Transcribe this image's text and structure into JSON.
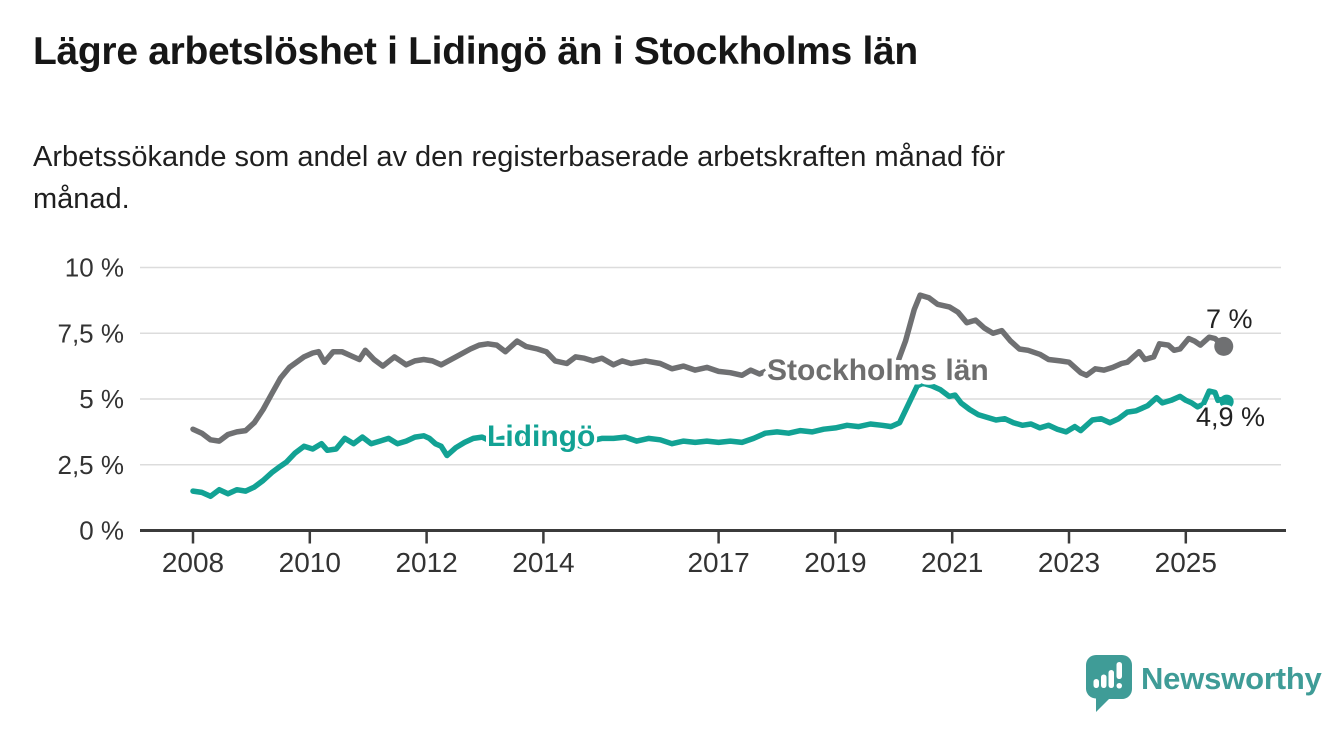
{
  "header": {
    "title": "Lägre arbetslöshet i Lidingö än i Stockholms län",
    "subtitle_line1": "Arbetssökande som andel av den registerbaserade arbetskraften månad för",
    "subtitle_line2": "månad."
  },
  "chart_data": {
    "type": "line",
    "title": "Lägre arbetslöshet i Lidingö än i Stockholms län",
    "xlabel": "",
    "ylabel": "Arbetssökande som andel av den registerbaserade arbetskraften",
    "unit": "%",
    "grid": true,
    "legend_position": "inline-labels",
    "ylim": [
      0,
      10
    ],
    "xlim": [
      2007.6,
      2026.3
    ],
    "y_ticks": [
      {
        "value": 0,
        "label": "0 %"
      },
      {
        "value": 2.5,
        "label": "2,5 %"
      },
      {
        "value": 5,
        "label": "5 %"
      },
      {
        "value": 7.5,
        "label": "7,5 %"
      },
      {
        "value": 10,
        "label": "10 %"
      }
    ],
    "x_ticks": [
      2008,
      2010,
      2012,
      2014,
      2017,
      2019,
      2021,
      2023,
      2025
    ],
    "series": [
      {
        "name": "Stockholms län",
        "color": "#6f7072",
        "end_label": "7 %",
        "end_value": 7.0,
        "points": [
          [
            2008.0,
            3.85
          ],
          [
            2008.15,
            3.7
          ],
          [
            2008.3,
            3.45
          ],
          [
            2008.45,
            3.4
          ],
          [
            2008.6,
            3.65
          ],
          [
            2008.75,
            3.75
          ],
          [
            2008.9,
            3.8
          ],
          [
            2009.05,
            4.1
          ],
          [
            2009.2,
            4.6
          ],
          [
            2009.35,
            5.2
          ],
          [
            2009.5,
            5.8
          ],
          [
            2009.65,
            6.2
          ],
          [
            2009.9,
            6.6
          ],
          [
            2010.05,
            6.75
          ],
          [
            2010.15,
            6.8
          ],
          [
            2010.25,
            6.4
          ],
          [
            2010.4,
            6.8
          ],
          [
            2010.55,
            6.8
          ],
          [
            2010.7,
            6.65
          ],
          [
            2010.85,
            6.5
          ],
          [
            2010.95,
            6.85
          ],
          [
            2011.1,
            6.5
          ],
          [
            2011.25,
            6.25
          ],
          [
            2011.45,
            6.6
          ],
          [
            2011.65,
            6.3
          ],
          [
            2011.8,
            6.45
          ],
          [
            2011.95,
            6.5
          ],
          [
            2012.1,
            6.45
          ],
          [
            2012.25,
            6.3
          ],
          [
            2012.5,
            6.6
          ],
          [
            2012.75,
            6.9
          ],
          [
            2012.9,
            7.05
          ],
          [
            2013.05,
            7.1
          ],
          [
            2013.2,
            7.05
          ],
          [
            2013.35,
            6.8
          ],
          [
            2013.55,
            7.2
          ],
          [
            2013.7,
            7.0
          ],
          [
            2013.9,
            6.9
          ],
          [
            2014.05,
            6.8
          ],
          [
            2014.2,
            6.45
          ],
          [
            2014.4,
            6.35
          ],
          [
            2014.55,
            6.6
          ],
          [
            2014.7,
            6.55
          ],
          [
            2014.85,
            6.45
          ],
          [
            2015.0,
            6.55
          ],
          [
            2015.2,
            6.3
          ],
          [
            2015.35,
            6.45
          ],
          [
            2015.5,
            6.35
          ],
          [
            2015.75,
            6.45
          ],
          [
            2016.0,
            6.35
          ],
          [
            2016.2,
            6.15
          ],
          [
            2016.4,
            6.25
          ],
          [
            2016.6,
            6.1
          ],
          [
            2016.8,
            6.2
          ],
          [
            2017.0,
            6.05
          ],
          [
            2017.2,
            6.0
          ],
          [
            2017.4,
            5.9
          ],
          [
            2017.55,
            6.1
          ],
          [
            2017.7,
            5.95
          ],
          [
            2017.85,
            6.1
          ],
          [
            2018.1,
            6.0
          ],
          [
            2018.4,
            6.05
          ],
          [
            2018.7,
            6.0
          ],
          [
            2019.0,
            6.1
          ],
          [
            2019.3,
            6.05
          ],
          [
            2019.6,
            6.1
          ],
          [
            2019.9,
            6.15
          ],
          [
            2020.05,
            6.3
          ],
          [
            2020.2,
            7.2
          ],
          [
            2020.35,
            8.4
          ],
          [
            2020.45,
            8.95
          ],
          [
            2020.6,
            8.85
          ],
          [
            2020.75,
            8.6
          ],
          [
            2020.95,
            8.5
          ],
          [
            2021.1,
            8.3
          ],
          [
            2021.25,
            7.9
          ],
          [
            2021.4,
            8.0
          ],
          [
            2021.55,
            7.7
          ],
          [
            2021.7,
            7.5
          ],
          [
            2021.85,
            7.6
          ],
          [
            2022.0,
            7.2
          ],
          [
            2022.15,
            6.9
          ],
          [
            2022.3,
            6.85
          ],
          [
            2022.5,
            6.7
          ],
          [
            2022.65,
            6.5
          ],
          [
            2022.85,
            6.45
          ],
          [
            2023.0,
            6.4
          ],
          [
            2023.2,
            6.0
          ],
          [
            2023.3,
            5.9
          ],
          [
            2023.45,
            6.15
          ],
          [
            2023.6,
            6.1
          ],
          [
            2023.75,
            6.2
          ],
          [
            2023.9,
            6.35
          ],
          [
            2024.0,
            6.4
          ],
          [
            2024.2,
            6.8
          ],
          [
            2024.3,
            6.5
          ],
          [
            2024.45,
            6.6
          ],
          [
            2024.55,
            7.1
          ],
          [
            2024.7,
            7.05
          ],
          [
            2024.8,
            6.85
          ],
          [
            2024.9,
            6.9
          ],
          [
            2025.05,
            7.3
          ],
          [
            2025.15,
            7.2
          ],
          [
            2025.25,
            7.05
          ],
          [
            2025.4,
            7.35
          ],
          [
            2025.5,
            7.3
          ],
          [
            2025.65,
            7.0
          ]
        ]
      },
      {
        "name": "Lidingö",
        "color": "#12a294",
        "end_label": "4,9 %",
        "end_value": 4.9,
        "points": [
          [
            2008.0,
            1.5
          ],
          [
            2008.15,
            1.45
          ],
          [
            2008.3,
            1.3
          ],
          [
            2008.45,
            1.55
          ],
          [
            2008.6,
            1.4
          ],
          [
            2008.75,
            1.55
          ],
          [
            2008.9,
            1.5
          ],
          [
            2009.05,
            1.65
          ],
          [
            2009.2,
            1.9
          ],
          [
            2009.35,
            2.2
          ],
          [
            2009.5,
            2.45
          ],
          [
            2009.6,
            2.6
          ],
          [
            2009.75,
            2.95
          ],
          [
            2009.9,
            3.2
          ],
          [
            2010.05,
            3.1
          ],
          [
            2010.2,
            3.3
          ],
          [
            2010.3,
            3.05
          ],
          [
            2010.45,
            3.1
          ],
          [
            2010.6,
            3.5
          ],
          [
            2010.75,
            3.3
          ],
          [
            2010.9,
            3.55
          ],
          [
            2011.05,
            3.3
          ],
          [
            2011.2,
            3.4
          ],
          [
            2011.35,
            3.5
          ],
          [
            2011.5,
            3.3
          ],
          [
            2011.65,
            3.4
          ],
          [
            2011.8,
            3.55
          ],
          [
            2011.95,
            3.6
          ],
          [
            2012.05,
            3.5
          ],
          [
            2012.15,
            3.3
          ],
          [
            2012.25,
            3.2
          ],
          [
            2012.35,
            2.85
          ],
          [
            2012.5,
            3.15
          ],
          [
            2012.65,
            3.35
          ],
          [
            2012.8,
            3.5
          ],
          [
            2012.95,
            3.55
          ],
          [
            2013.1,
            3.4
          ],
          [
            2013.3,
            3.5
          ],
          [
            2013.5,
            3.45
          ],
          [
            2013.7,
            3.5
          ],
          [
            2013.9,
            3.45
          ],
          [
            2014.1,
            3.5
          ],
          [
            2014.3,
            3.4
          ],
          [
            2014.5,
            3.3
          ],
          [
            2014.65,
            3.2
          ],
          [
            2014.8,
            3.4
          ],
          [
            2015.0,
            3.5
          ],
          [
            2015.2,
            3.5
          ],
          [
            2015.4,
            3.55
          ],
          [
            2015.6,
            3.4
          ],
          [
            2015.8,
            3.5
          ],
          [
            2016.0,
            3.45
          ],
          [
            2016.2,
            3.3
          ],
          [
            2016.4,
            3.4
          ],
          [
            2016.6,
            3.35
          ],
          [
            2016.8,
            3.4
          ],
          [
            2017.0,
            3.35
          ],
          [
            2017.2,
            3.4
          ],
          [
            2017.4,
            3.35
          ],
          [
            2017.6,
            3.5
          ],
          [
            2017.8,
            3.7
          ],
          [
            2018.0,
            3.75
          ],
          [
            2018.2,
            3.7
          ],
          [
            2018.4,
            3.8
          ],
          [
            2018.6,
            3.75
          ],
          [
            2018.8,
            3.85
          ],
          [
            2019.0,
            3.9
          ],
          [
            2019.2,
            4.0
          ],
          [
            2019.4,
            3.95
          ],
          [
            2019.6,
            4.05
          ],
          [
            2019.8,
            4.0
          ],
          [
            2019.95,
            3.95
          ],
          [
            2020.1,
            4.1
          ],
          [
            2020.25,
            4.8
          ],
          [
            2020.4,
            5.5
          ],
          [
            2020.5,
            5.6
          ],
          [
            2020.65,
            5.5
          ],
          [
            2020.8,
            5.35
          ],
          [
            2020.95,
            5.1
          ],
          [
            2021.05,
            5.15
          ],
          [
            2021.15,
            4.85
          ],
          [
            2021.3,
            4.6
          ],
          [
            2021.45,
            4.4
          ],
          [
            2021.6,
            4.3
          ],
          [
            2021.75,
            4.2
          ],
          [
            2021.9,
            4.25
          ],
          [
            2022.05,
            4.1
          ],
          [
            2022.2,
            4.0
          ],
          [
            2022.35,
            4.05
          ],
          [
            2022.5,
            3.9
          ],
          [
            2022.65,
            4.0
          ],
          [
            2022.8,
            3.85
          ],
          [
            2022.95,
            3.75
          ],
          [
            2023.1,
            3.95
          ],
          [
            2023.2,
            3.8
          ],
          [
            2023.4,
            4.2
          ],
          [
            2023.55,
            4.25
          ],
          [
            2023.7,
            4.1
          ],
          [
            2023.85,
            4.25
          ],
          [
            2024.0,
            4.5
          ],
          [
            2024.15,
            4.55
          ],
          [
            2024.35,
            4.75
          ],
          [
            2024.5,
            5.05
          ],
          [
            2024.6,
            4.85
          ],
          [
            2024.75,
            4.95
          ],
          [
            2024.9,
            5.1
          ],
          [
            2025.0,
            4.95
          ],
          [
            2025.1,
            4.85
          ],
          [
            2025.2,
            4.7
          ],
          [
            2025.3,
            4.8
          ],
          [
            2025.4,
            5.3
          ],
          [
            2025.5,
            5.25
          ],
          [
            2025.55,
            4.95
          ],
          [
            2025.65,
            5.0
          ],
          [
            2025.7,
            4.9
          ]
        ]
      }
    ]
  },
  "footer": {
    "brand": "Newsworthy",
    "logo_icon": "bar-chart-speech-bubble-icon"
  },
  "colors": {
    "stockholm_line": "#6f7072",
    "lidingo_line": "#12a294",
    "grid": "#dcdcdc",
    "axis": "#3b3b3b",
    "axis_text": "#333333",
    "end_label_text": "#222222",
    "brand_teal": "#3f9c97",
    "background": "#ffffff"
  }
}
